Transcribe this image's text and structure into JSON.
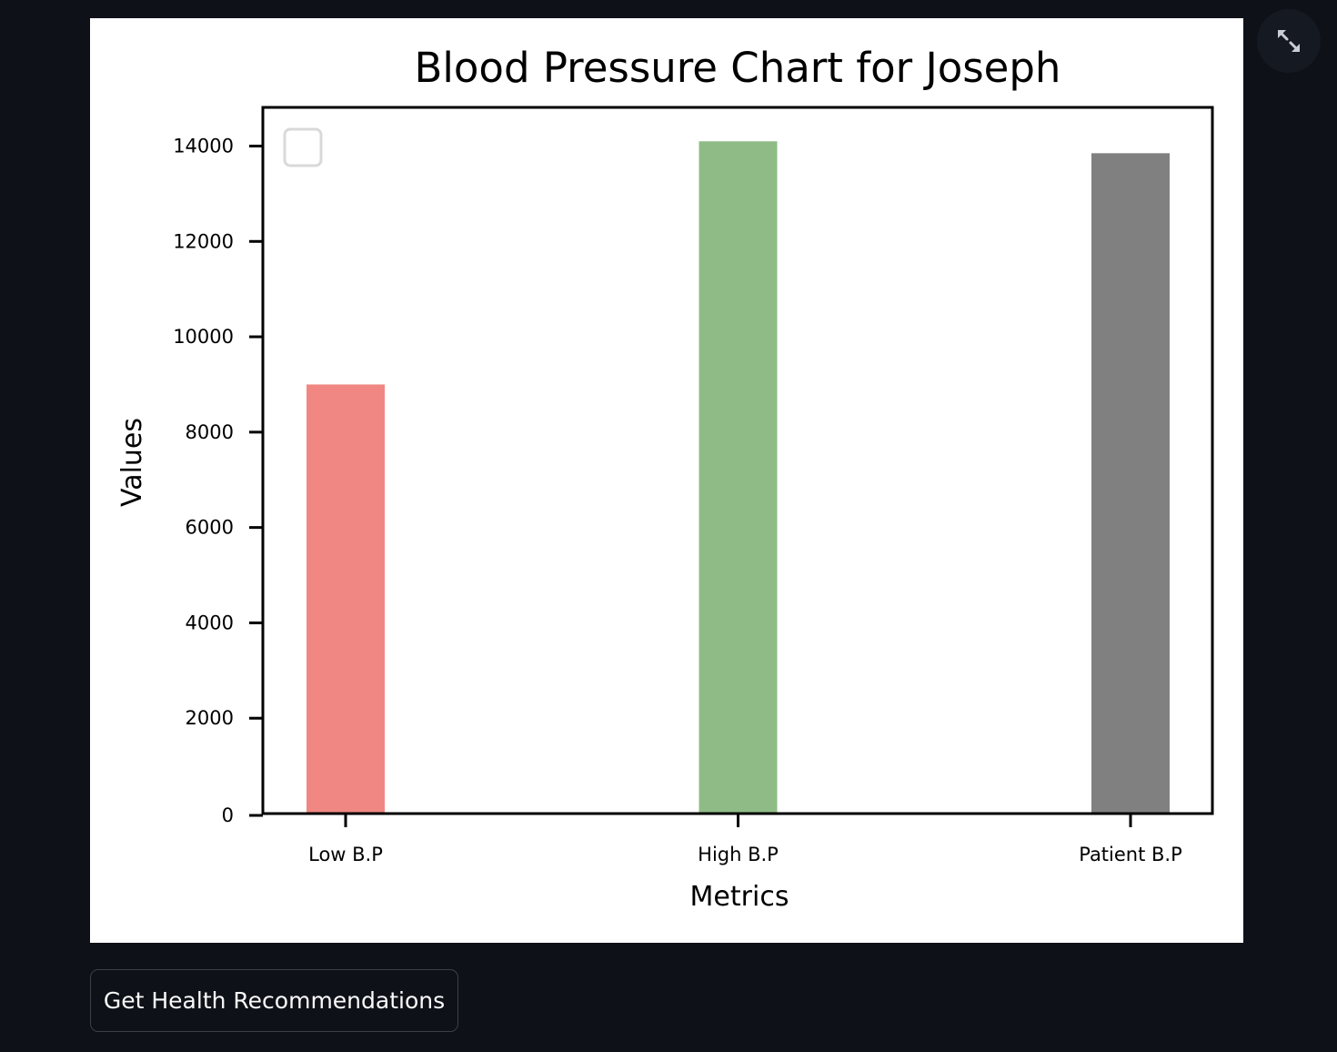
{
  "chart_data": {
    "type": "bar",
    "title": "Blood Pressure Chart for Joseph",
    "xlabel": "Metrics",
    "ylabel": "Values",
    "categories": [
      "Low B.P",
      "High B.P",
      "Patient B.P"
    ],
    "values": [
      9000,
      14100,
      13850
    ],
    "colors": [
      "#f08783",
      "#8fbc86",
      "#808080"
    ],
    "ylim": [
      0,
      14800
    ],
    "yticks": [
      0,
      2000,
      4000,
      6000,
      8000,
      10000,
      12000,
      14000
    ],
    "legend": "top-left, empty",
    "grid": false
  },
  "buttons": {
    "recommendations_label": "Get Health Recommendations",
    "fullscreen_icon": "expand-icon"
  }
}
